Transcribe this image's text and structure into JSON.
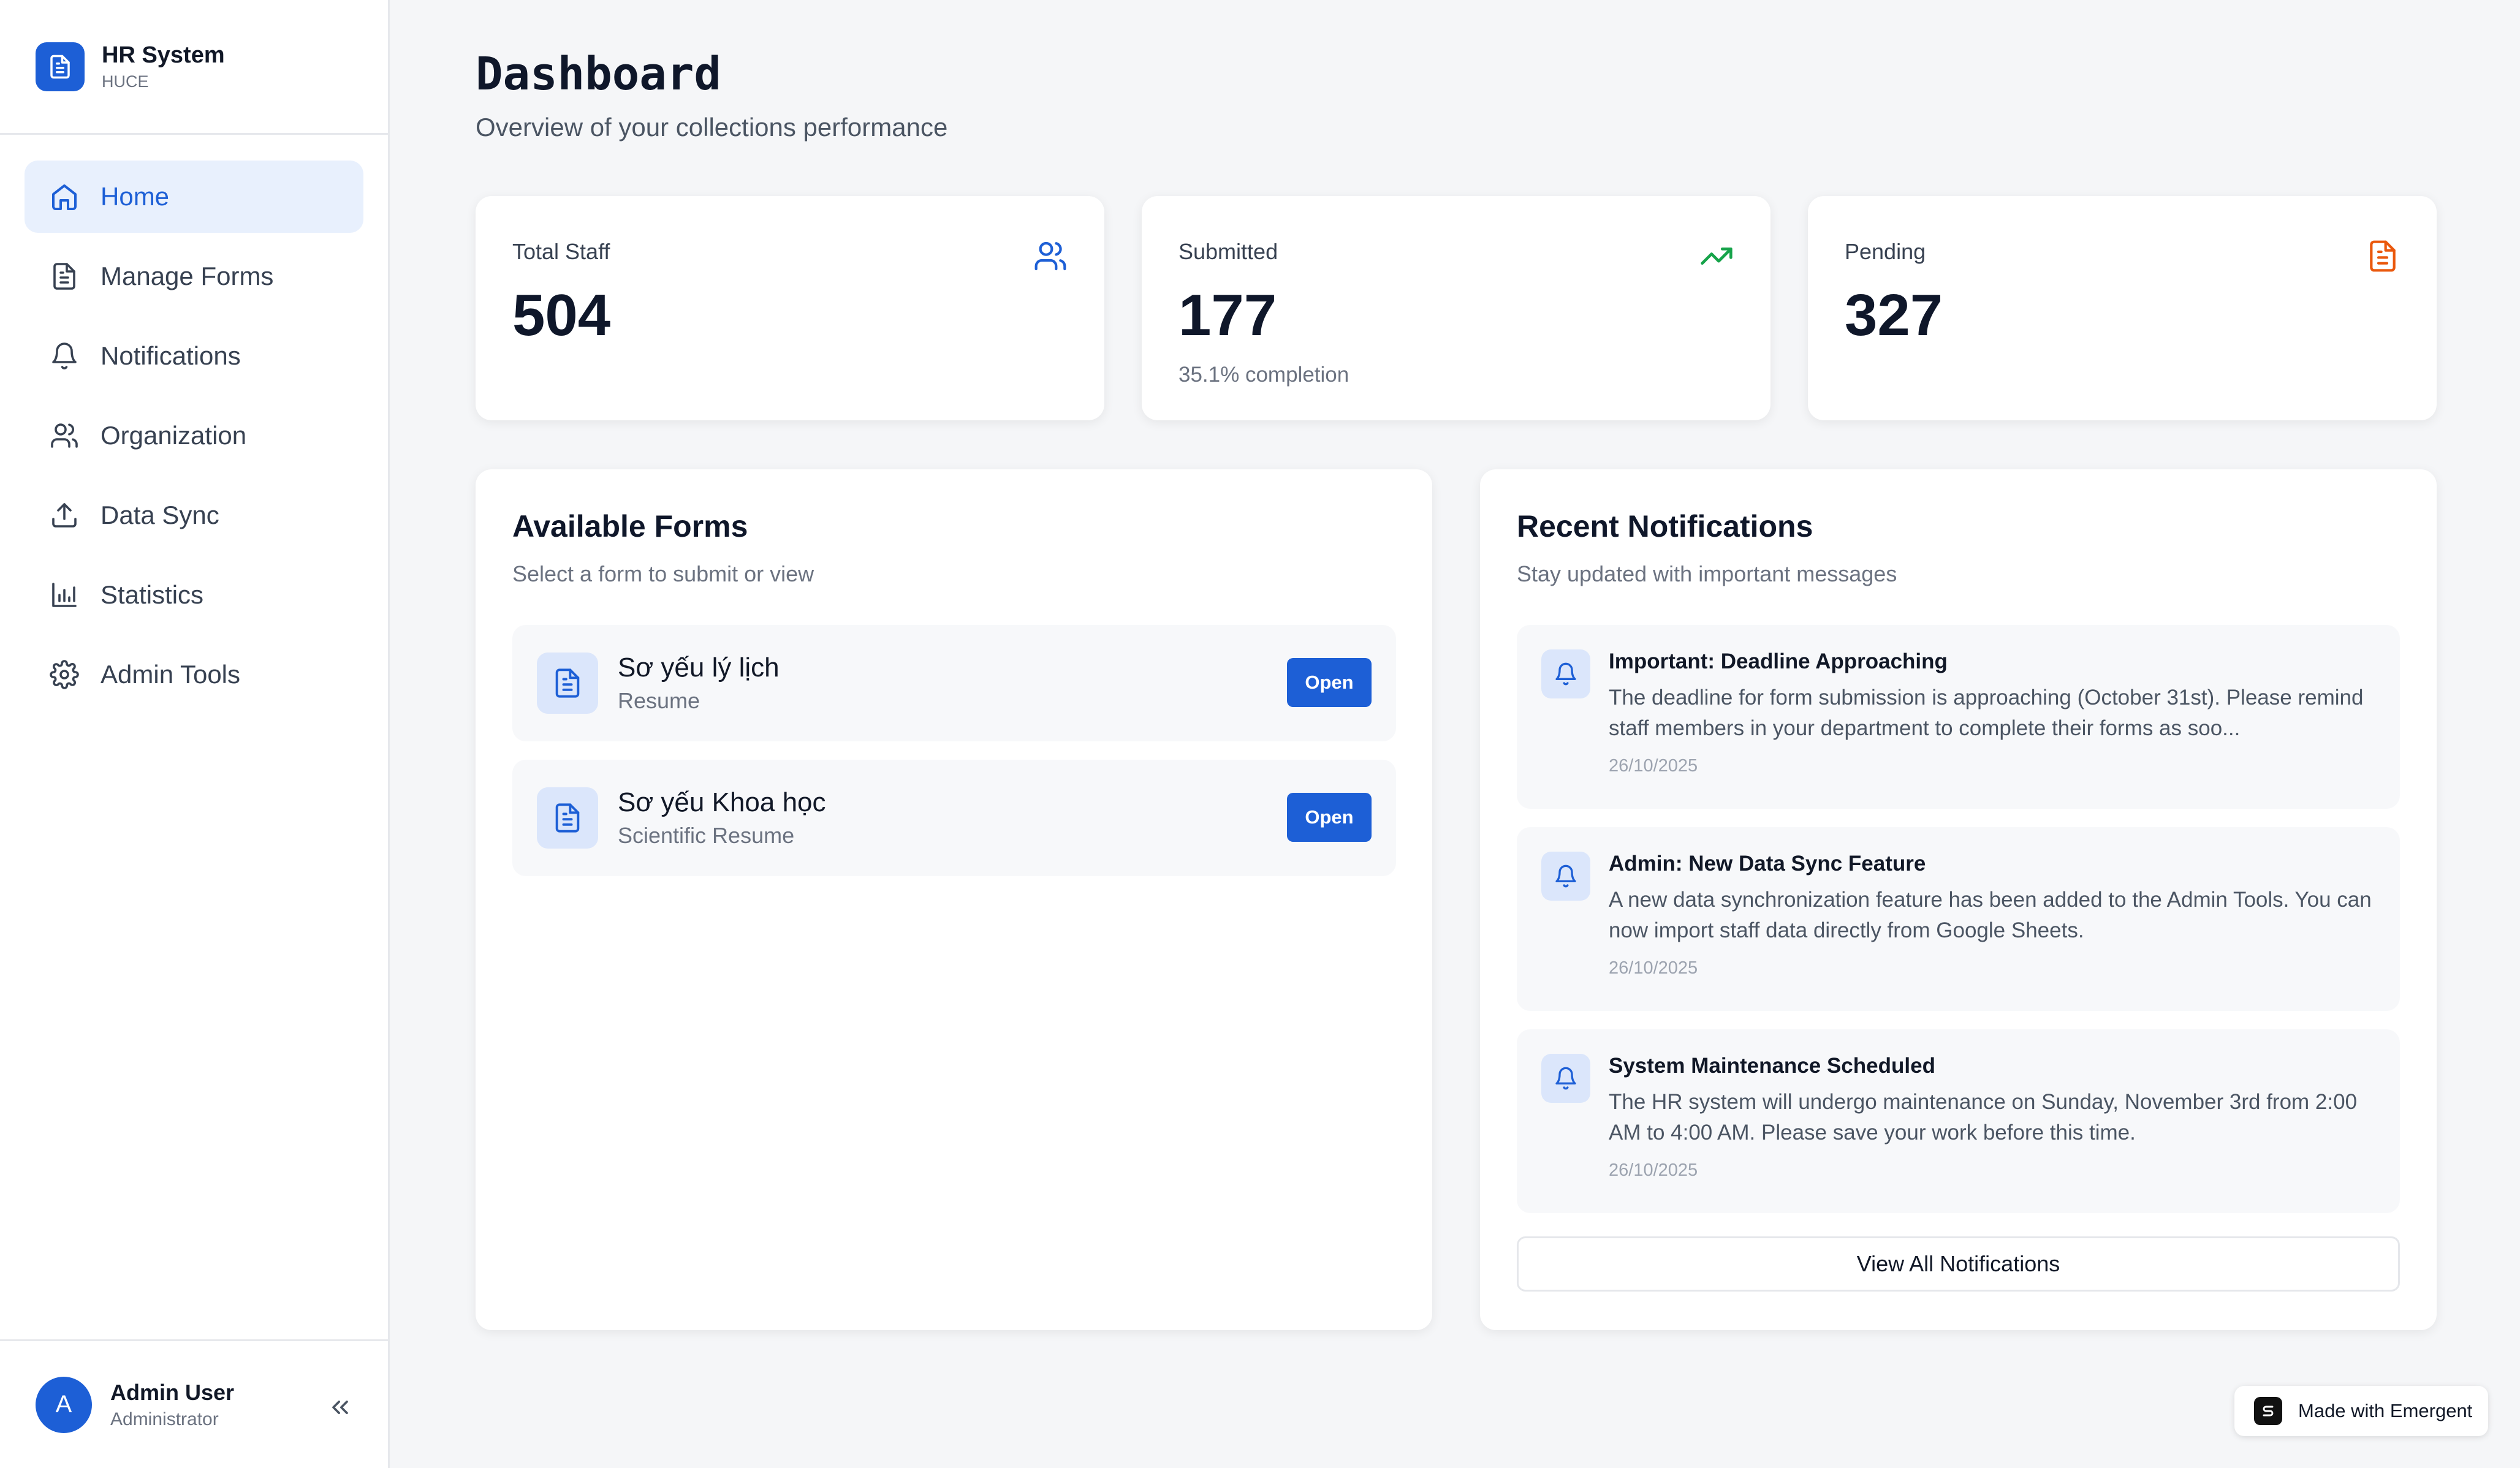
{
  "brand": {
    "name": "HR System",
    "subtitle": "HUCE"
  },
  "sidebar": {
    "items": [
      {
        "label": "Home",
        "icon": "home-icon",
        "active": true
      },
      {
        "label": "Manage Forms",
        "icon": "file-icon"
      },
      {
        "label": "Notifications",
        "icon": "bell-icon"
      },
      {
        "label": "Organization",
        "icon": "users-icon"
      },
      {
        "label": "Data Sync",
        "icon": "upload-icon"
      },
      {
        "label": "Statistics",
        "icon": "bar-chart-icon"
      },
      {
        "label": "Admin Tools",
        "icon": "gear-icon"
      }
    ]
  },
  "user": {
    "initial": "A",
    "name": "Admin User",
    "role": "Administrator"
  },
  "header": {
    "title": "Dashboard",
    "subtitle": "Overview of your collections performance"
  },
  "stats": [
    {
      "label": "Total Staff",
      "value": "504",
      "icon": "users-icon",
      "color": "#1d5fd6"
    },
    {
      "label": "Submitted",
      "value": "177",
      "note": "35.1% completion",
      "icon": "trending-up-icon",
      "color": "#16a34a"
    },
    {
      "label": "Pending",
      "value": "327",
      "icon": "file-icon",
      "color": "#ea580c"
    }
  ],
  "forms": {
    "title": "Available Forms",
    "subtitle": "Select a form to submit or view",
    "items": [
      {
        "name": "Sơ yếu lý lịch",
        "english": "Resume",
        "button": "Open"
      },
      {
        "name": "Sơ yếu Khoa học",
        "english": "Scientific Resume",
        "button": "Open"
      }
    ]
  },
  "notifications": {
    "title": "Recent Notifications",
    "subtitle": "Stay updated with important messages",
    "items": [
      {
        "title": "Important: Deadline Approaching",
        "body": "The deadline for form submission is approaching (October 31st). Please remind staff members in your department to complete their forms as soo...",
        "date": "26/10/2025"
      },
      {
        "title": "Admin: New Data Sync Feature",
        "body": "A new data synchronization feature has been added to the Admin Tools. You can now import staff data directly from Google Sheets.",
        "date": "26/10/2025"
      },
      {
        "title": "System Maintenance Scheduled",
        "body": "The HR system will undergo maintenance on Sunday, November 3rd from 2:00 AM to 4:00 AM. Please save your work before this time.",
        "date": "26/10/2025"
      }
    ],
    "view_all": "View All Notifications"
  },
  "badge": {
    "label": "Made with Emergent"
  },
  "colors": {
    "accent": "#1d5fd6",
    "background": "#f5f6f8"
  }
}
